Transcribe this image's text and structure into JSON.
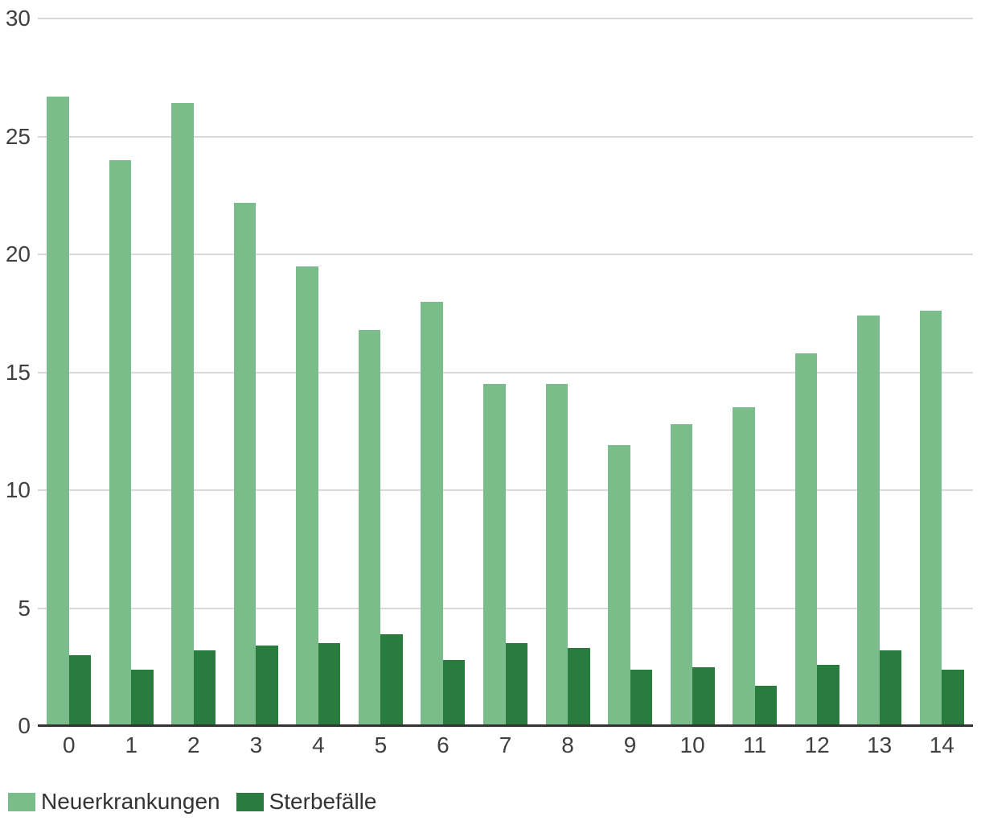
{
  "chart_data": {
    "type": "bar",
    "title": "",
    "xlabel": "",
    "ylabel": "",
    "categories": [
      "0",
      "1",
      "2",
      "3",
      "4",
      "5",
      "6",
      "7",
      "8",
      "9",
      "10",
      "11",
      "12",
      "13",
      "14"
    ],
    "series": [
      {
        "name": "Neuerkrankungen",
        "color": "#7abd8a",
        "values": [
          26.7,
          24.0,
          26.4,
          22.2,
          19.5,
          16.8,
          18.0,
          14.5,
          14.5,
          11.9,
          12.8,
          13.5,
          15.8,
          17.4,
          17.6
        ]
      },
      {
        "name": "Sterbefälle",
        "color": "#2a7c3e",
        "values": [
          3.0,
          2.4,
          3.2,
          3.4,
          3.5,
          3.9,
          2.8,
          3.5,
          3.3,
          2.4,
          2.5,
          1.7,
          2.6,
          3.2,
          2.4
        ]
      }
    ],
    "ylim": [
      0,
      30
    ],
    "yticks": [
      0,
      5,
      10,
      15,
      20,
      25,
      30
    ],
    "grid": true,
    "legend_position": "bottom"
  },
  "colors": {
    "background": "#ffffff",
    "gridline": "#d9d9d9",
    "baseline": "#333333",
    "axis_text": "#404040",
    "legend_text": "#333333"
  }
}
